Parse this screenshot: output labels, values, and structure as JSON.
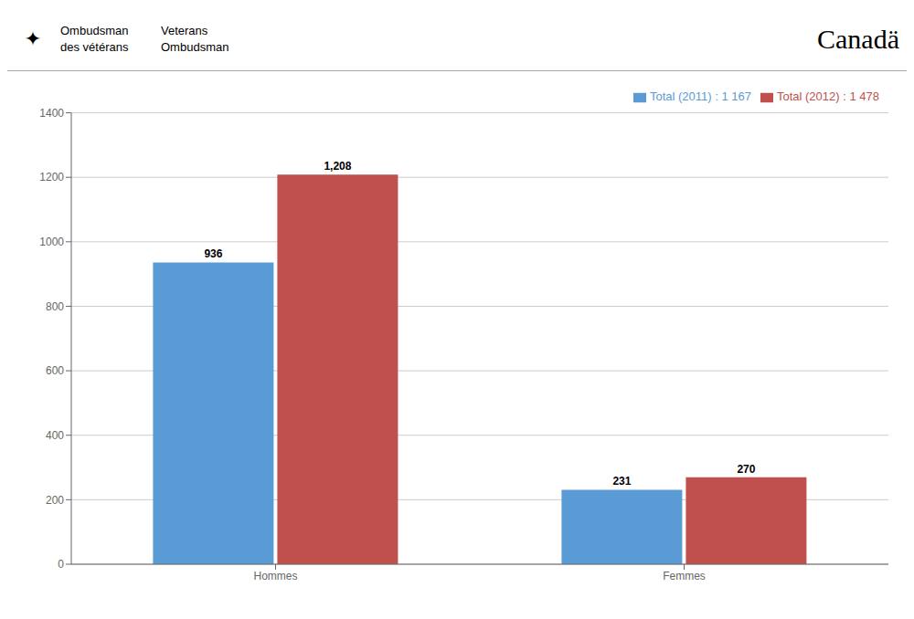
{
  "chart_data": {
    "type": "bar",
    "categories": [
      "Hommes",
      "Femmes"
    ],
    "series": [
      {
        "name": "Total (2011) : 1 167",
        "color": "#5b9bd5",
        "values": [
          936,
          231
        ],
        "value_labels": [
          "936",
          "231"
        ]
      },
      {
        "name": "Total (2012) : 1 478",
        "color": "#c0504d",
        "values": [
          1208,
          270
        ],
        "value_labels": [
          "1,208",
          "270"
        ]
      }
    ],
    "ylim": [
      0,
      1400
    ],
    "yticks": [
      0,
      200,
      400,
      600,
      800,
      1000,
      1200,
      1400
    ],
    "grid": true,
    "legend": "upper right",
    "data_labels": true,
    "annotations": [
      "✦",
      "Ombudsman",
      "des vétérans",
      "Veterans",
      "Ombudsman",
      "Canadä"
    ]
  }
}
